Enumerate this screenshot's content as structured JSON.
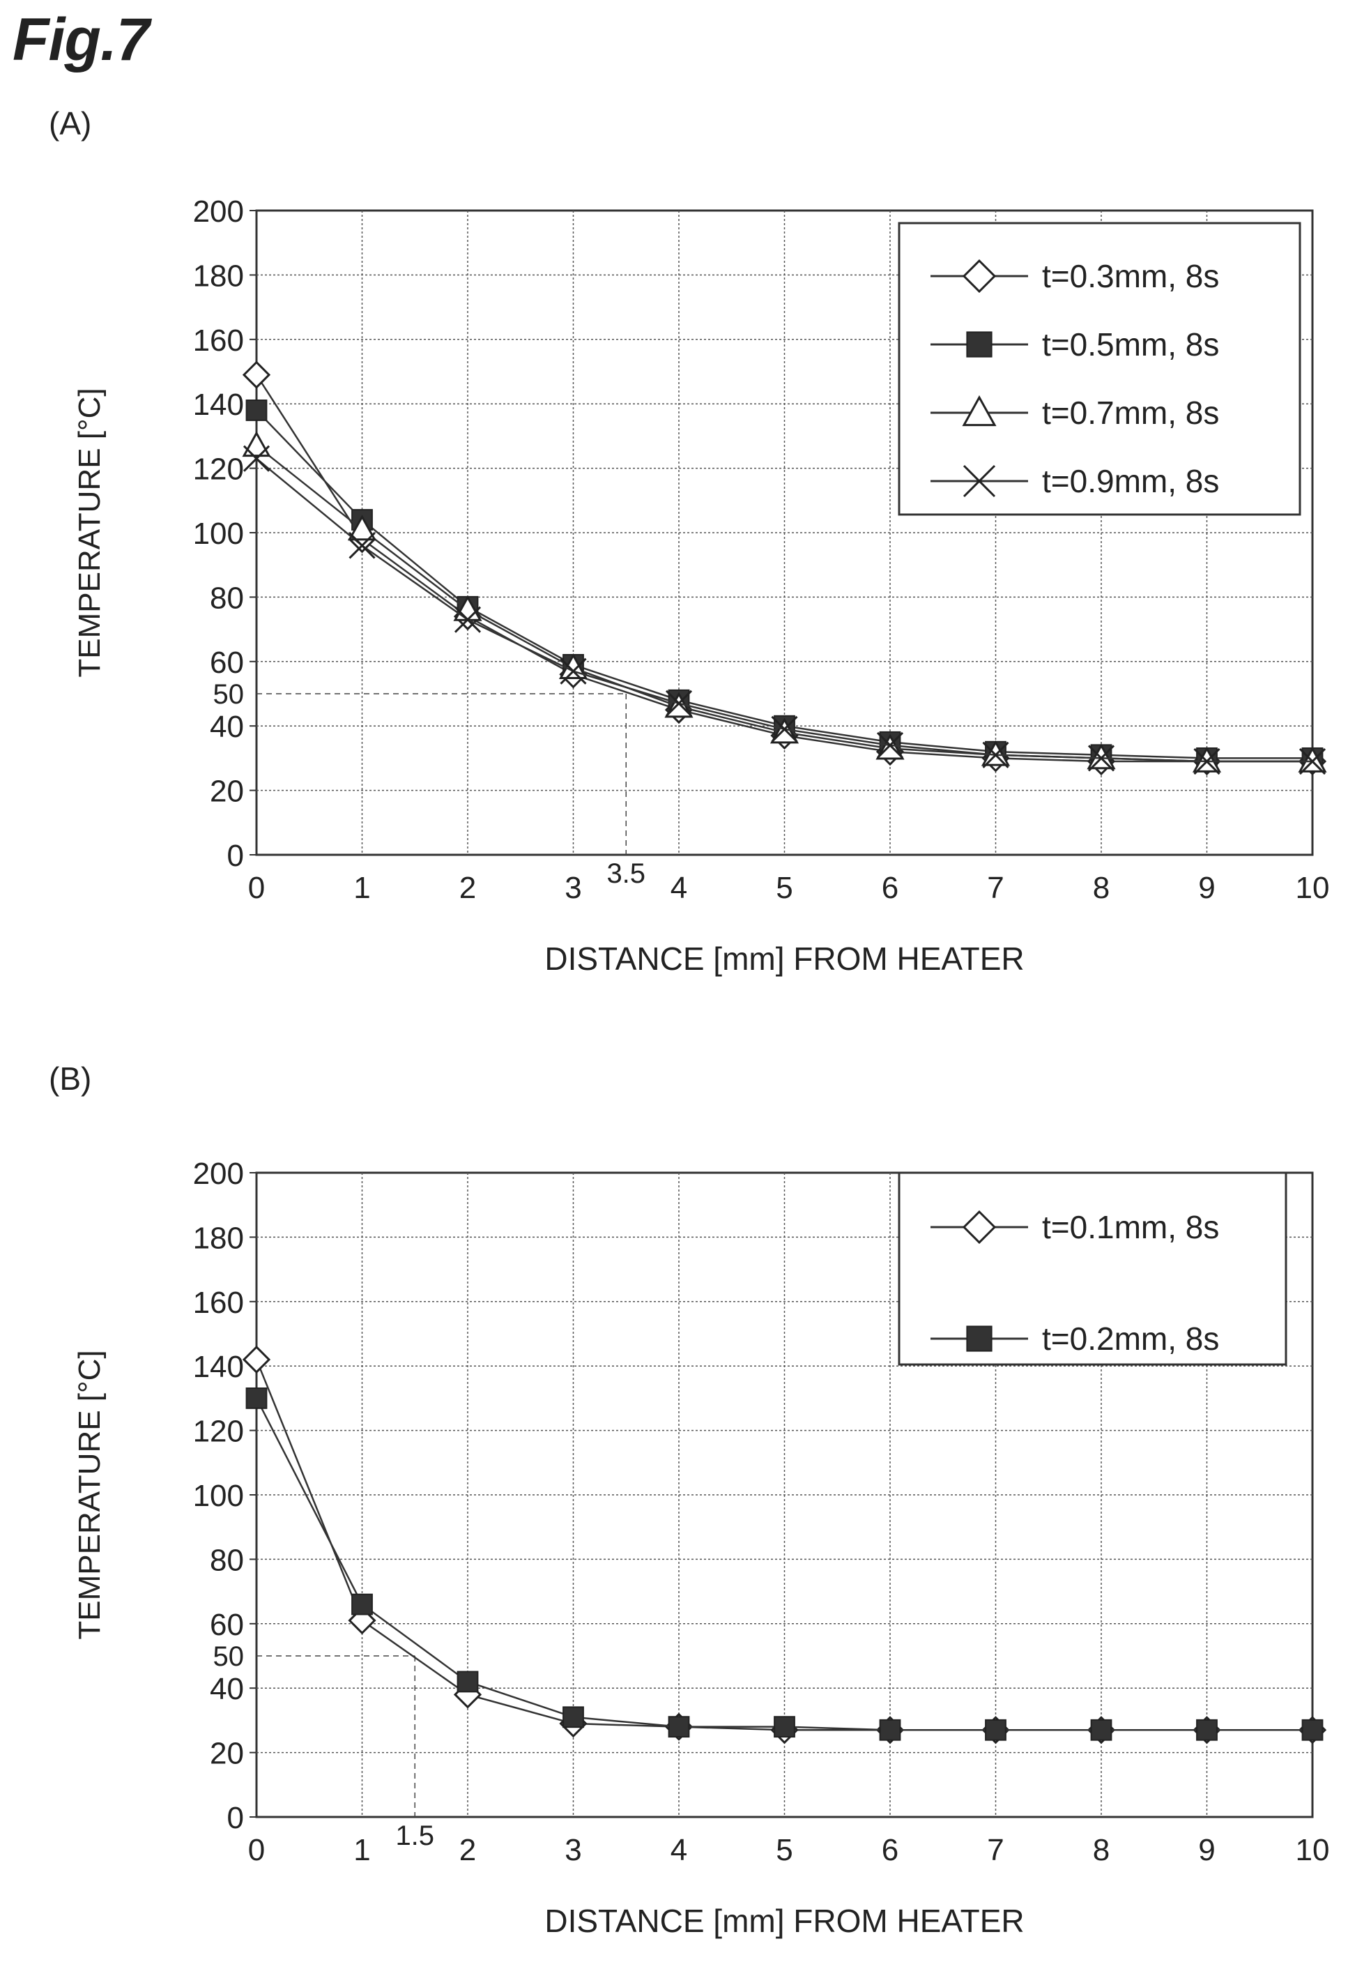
{
  "figure": {
    "title": "Fig.7"
  },
  "panels": [
    {
      "label": "(A)"
    },
    {
      "label": "(B)"
    }
  ],
  "chart_data": [
    {
      "type": "line",
      "xlabel": "DISTANCE [mm] FROM HEATER",
      "ylabel": "TEMPERATURE [°C]",
      "xlim": [
        0,
        10
      ],
      "ylim": [
        0,
        200
      ],
      "x_ticks": [
        "0",
        "1",
        "2",
        "3",
        "4",
        "5",
        "6",
        "7",
        "8",
        "9",
        "10"
      ],
      "y_ticks": [
        "0",
        "20",
        "40",
        "60",
        "80",
        "100",
        "120",
        "140",
        "160",
        "180",
        "200"
      ],
      "grid": true,
      "legend_position": "top-right",
      "x": [
        0,
        1,
        2,
        3,
        4,
        5,
        6,
        7,
        8,
        9,
        10
      ],
      "series": [
        {
          "name": "t=0.3mm, 8s",
          "marker": "diamond-open",
          "values": [
            149,
            98,
            74,
            56,
            45,
            37,
            32,
            30,
            29,
            29,
            29
          ]
        },
        {
          "name": "t=0.5mm, 8s",
          "marker": "square-filled",
          "values": [
            138,
            104,
            77,
            59,
            48,
            40,
            35,
            32,
            31,
            30,
            30
          ]
        },
        {
          "name": "t=0.7mm, 8s",
          "marker": "triangle-open",
          "values": [
            127,
            101,
            76,
            58,
            46,
            38,
            33,
            31,
            30,
            29,
            29
          ]
        },
        {
          "name": "t=0.9mm, 8s",
          "marker": "x",
          "values": [
            123,
            96,
            73,
            57,
            47,
            39,
            34,
            31,
            30,
            29,
            29
          ]
        }
      ],
      "annotations": {
        "y_value": "50",
        "x_value": "3.5",
        "y": 50,
        "x": 3.5
      }
    },
    {
      "type": "line",
      "xlabel": "DISTANCE [mm] FROM HEATER",
      "ylabel": "TEMPERATURE [°C]",
      "xlim": [
        0,
        10
      ],
      "ylim": [
        0,
        200
      ],
      "x_ticks": [
        "0",
        "1",
        "2",
        "3",
        "4",
        "5",
        "6",
        "7",
        "8",
        "9",
        "10"
      ],
      "y_ticks": [
        "0",
        "20",
        "40",
        "60",
        "80",
        "100",
        "120",
        "140",
        "160",
        "180",
        "200"
      ],
      "grid": true,
      "legend_position": "top-right",
      "x": [
        0,
        1,
        2,
        3,
        4,
        5,
        6,
        7,
        8,
        9,
        10
      ],
      "series": [
        {
          "name": "t=0.1mm, 8s",
          "marker": "diamond-open",
          "values": [
            142,
            61,
            38,
            29,
            28,
            27,
            27,
            27,
            27,
            27,
            27
          ]
        },
        {
          "name": "t=0.2mm, 8s",
          "marker": "square-filled",
          "values": [
            130,
            66,
            42,
            31,
            28,
            28,
            27,
            27,
            27,
            27,
            27
          ]
        }
      ],
      "annotations": {
        "y_value": "50",
        "x_value": "1.5",
        "y": 50,
        "x": 1.5
      }
    }
  ]
}
